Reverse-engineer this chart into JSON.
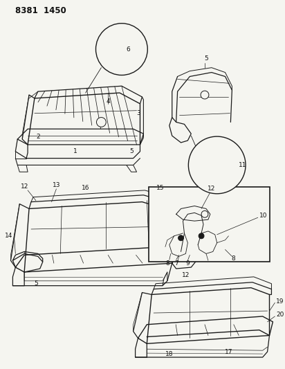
{
  "title": "8381  1450",
  "bg_color": "#f5f5f0",
  "line_color": "#1a1a1a",
  "title_fontsize": 8.5,
  "label_fontsize": 6.5,
  "fig_width": 4.12,
  "fig_height": 5.33
}
